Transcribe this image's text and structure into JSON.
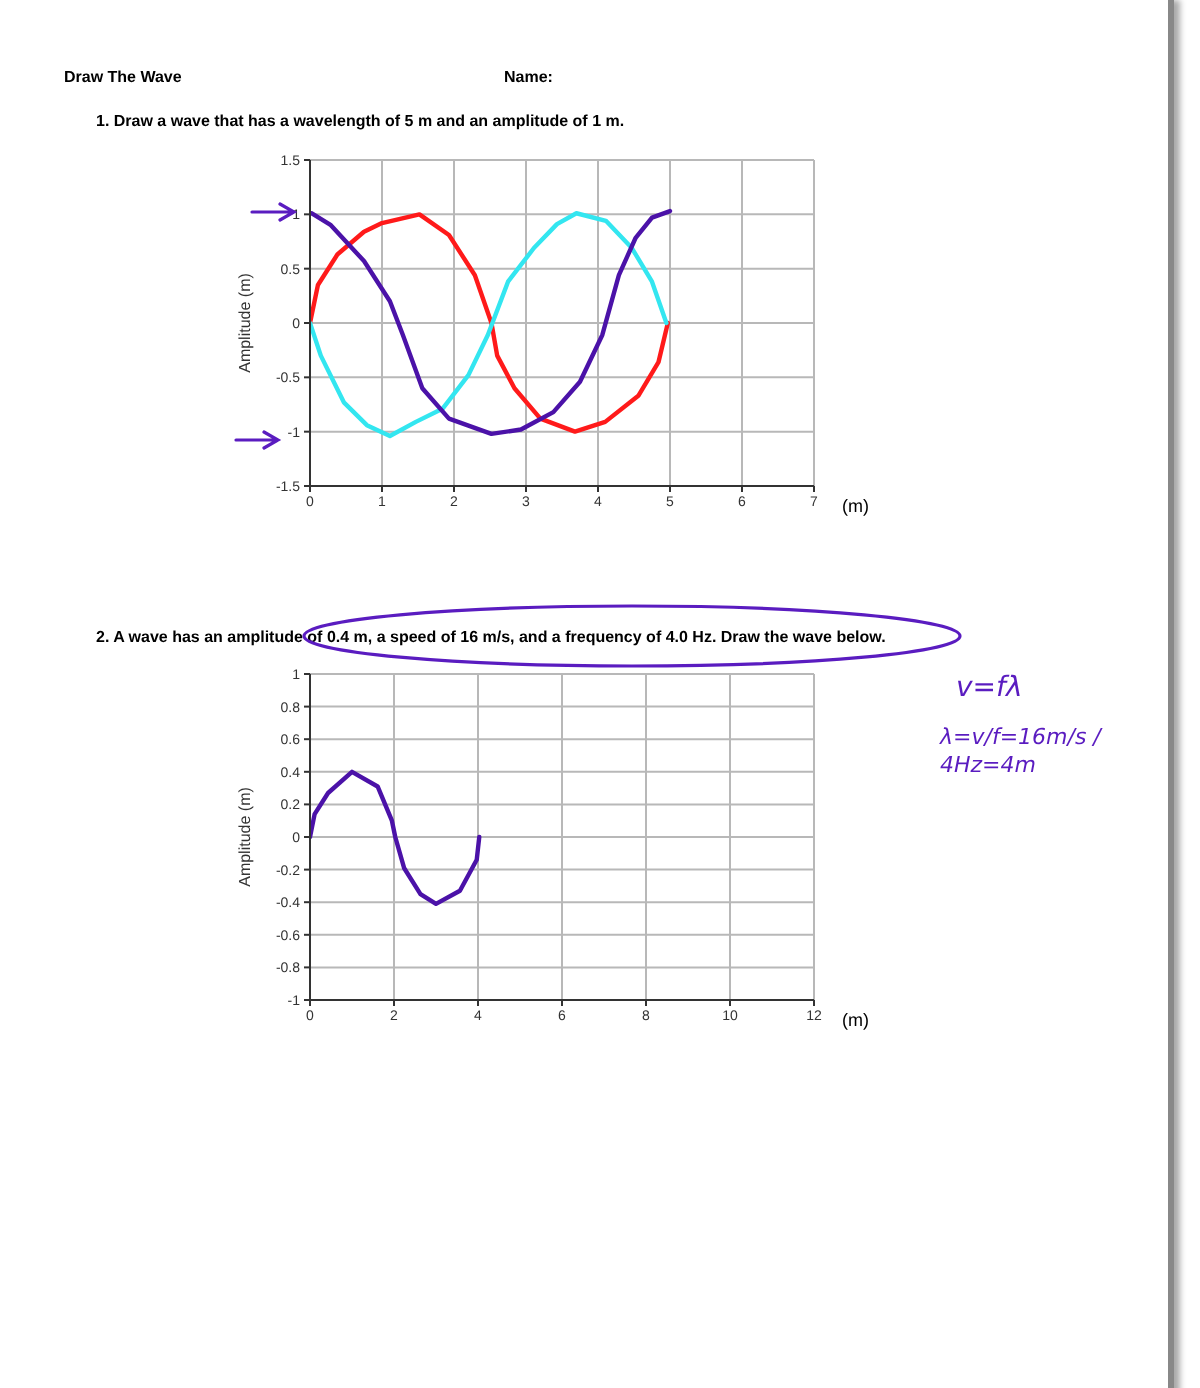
{
  "chart_data": [
    {
      "type": "line",
      "title": "1.  Draw a wave that has a wavelength of 5 m and an amplitude of 1 m.",
      "annotations": [
        "Draw The Wave",
        "Name:"
      ],
      "xlabel": "(m)",
      "ylabel": "Amplitude (m)",
      "xlim": [
        0,
        7
      ],
      "xticks": [
        0,
        1,
        2,
        3,
        4,
        5,
        6,
        7
      ],
      "ylim": [
        -1.5,
        1.5
      ],
      "yticks": [
        -1.5,
        -1,
        -0.5,
        0,
        0.5,
        1,
        1.5
      ],
      "grid": true,
      "marker": "none",
      "line_style": "solid",
      "series": [
        {
          "color": "#ff1a1a",
          "x": [
            0,
            0.11,
            0.38,
            0.75,
            1,
            1.52,
            1.93,
            2.29,
            2.52,
            2.6,
            2.84,
            3.2,
            3.68,
            4.1,
            4.56,
            4.84,
            4.97
          ],
          "values": [
            0,
            0.35,
            0.63,
            0.84,
            0.92,
            1,
            0.81,
            0.44,
            0,
            -0.3,
            -0.6,
            -0.88,
            -1,
            -0.91,
            -0.67,
            -0.36,
            0
          ]
        },
        {
          "color": "#33e6f0",
          "x": [
            0,
            0.15,
            0.47,
            0.79,
            1.11,
            1.47,
            1.84,
            2.2,
            2.47,
            2.75,
            3.11,
            3.43,
            3.7,
            4.11,
            4.47,
            4.75,
            4.95
          ],
          "values": [
            0,
            -0.3,
            -0.73,
            -0.94,
            -1.04,
            -0.91,
            -0.79,
            -0.48,
            -0.11,
            0.38,
            0.69,
            0.91,
            1.01,
            0.94,
            0.69,
            0.38,
            0
          ]
        },
        {
          "color": "#4b12a8",
          "x": [
            0.02,
            0.29,
            0.75,
            1.11,
            1.29,
            1.56,
            1.93,
            2.52,
            2.93,
            3.38,
            3.75,
            4.06,
            4.29,
            4.52,
            4.75,
            5
          ],
          "values": [
            1.01,
            0.9,
            0.57,
            0.2,
            -0.11,
            -0.6,
            -0.88,
            -1.02,
            -0.98,
            -0.82,
            -0.54,
            -0.11,
            0.44,
            0.78,
            0.97,
            1.03
          ]
        }
      ]
    },
    {
      "type": "line",
      "title": "2.  A wave has an amplitude of 0.4 m, a speed of 16 m/s, and a frequency of 4.0 Hz.  Draw the wave below.",
      "annotations": [
        "v=fλ",
        "λ=v/f=16m/s / 4Hz=4m"
      ],
      "xlabel": "(m)",
      "ylabel": "Amplitude (m)",
      "xlim": [
        0,
        12
      ],
      "xticks": [
        0,
        2,
        4,
        6,
        8,
        10,
        12
      ],
      "ylim": [
        -1,
        1
      ],
      "yticks": [
        -1,
        -0.8,
        -0.6,
        -0.4,
        -0.2,
        0,
        0.2,
        0.4,
        0.6,
        0.8,
        1
      ],
      "grid": true,
      "marker": "none",
      "line_style": "solid",
      "series": [
        {
          "color": "#4b12a8",
          "x": [
            0,
            0.11,
            0.43,
            1,
            1.61,
            1.95,
            2.03,
            2.24,
            2.63,
            3,
            3.57,
            3.97,
            4.03
          ],
          "values": [
            0,
            0.14,
            0.27,
            0.4,
            0.31,
            0.1,
            0,
            -0.19,
            -0.35,
            -0.41,
            -0.33,
            -0.14,
            0
          ]
        }
      ]
    }
  ]
}
